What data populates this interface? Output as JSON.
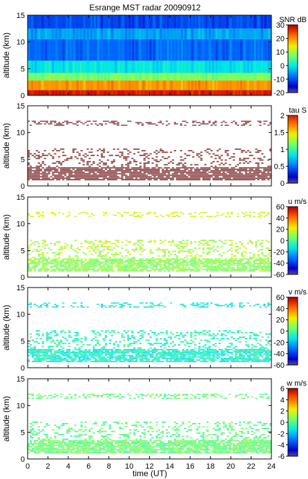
{
  "chart_data": {
    "type": "heatmap",
    "title": "Esrange MST radar 20090912",
    "xlabel": "time (UT)",
    "x_ticks": [
      0,
      2,
      4,
      6,
      8,
      10,
      12,
      14,
      16,
      18,
      20,
      22,
      24
    ],
    "xlim": [
      0,
      24
    ],
    "panels": [
      {
        "name": "snr",
        "ylabel": "altitude (km)",
        "ylim": [
          0,
          15
        ],
        "y_ticks": [
          0,
          5,
          10,
          15
        ],
        "colorbar": {
          "label": "SNR dB",
          "range": [
            -20,
            30
          ],
          "ticks": [
            30,
            20,
            10,
            0,
            -10,
            -20
          ]
        },
        "layers": [
          {
            "z0": 0.0,
            "z1": 1.0,
            "value": 28
          },
          {
            "z0": 1.0,
            "z1": 2.8,
            "value": 20
          },
          {
            "z0": 2.8,
            "z1": 4.2,
            "value": 8
          },
          {
            "z0": 4.2,
            "z1": 6.5,
            "value": 0
          },
          {
            "z0": 6.5,
            "z1": 10.5,
            "value": -8
          },
          {
            "z0": 10.5,
            "z1": 12.5,
            "value": -4
          },
          {
            "z0": 12.5,
            "z1": 15.0,
            "value": -10
          }
        ]
      },
      {
        "name": "tau",
        "ylabel": "altitude (km)",
        "ylim": [
          0,
          15
        ],
        "y_ticks": [
          0,
          5,
          10,
          15
        ],
        "colorbar": {
          "label": "tau S",
          "range": [
            0,
            2
          ],
          "ticks": [
            2,
            1.5,
            1,
            0.5,
            0
          ]
        },
        "layers": [
          {
            "z0": 1.0,
            "z1": 3.5,
            "value": 2,
            "density": 0.85
          },
          {
            "z0": 3.5,
            "z1": 7.0,
            "value": 2,
            "density": 0.25
          },
          {
            "z0": 11.2,
            "z1": 12.2,
            "value": 2,
            "density": 0.3
          }
        ]
      },
      {
        "name": "u",
        "ylabel": "altitude (km)",
        "ylim": [
          0,
          15
        ],
        "y_ticks": [
          0,
          5,
          10,
          15
        ],
        "colorbar": {
          "label": "u m/s",
          "range": [
            -60,
            60
          ],
          "ticks": [
            60,
            40,
            20,
            0,
            -20,
            -40,
            -60
          ]
        },
        "layers": [
          {
            "z0": 1.0,
            "z1": 3.5,
            "value": 10,
            "density": 0.8
          },
          {
            "z0": 3.5,
            "z1": 7.0,
            "value": 15,
            "density": 0.25
          },
          {
            "z0": 11.2,
            "z1": 12.2,
            "value": 20,
            "density": 0.3
          }
        ]
      },
      {
        "name": "v",
        "ylabel": "altitude (km)",
        "ylim": [
          0,
          15
        ],
        "y_ticks": [
          0,
          5,
          10,
          15
        ],
        "colorbar": {
          "label": "v m/s",
          "range": [
            -60,
            60
          ],
          "ticks": [
            60,
            40,
            20,
            0,
            -20,
            -40,
            -60
          ]
        },
        "layers": [
          {
            "z0": 1.0,
            "z1": 3.5,
            "value": -8,
            "density": 0.8
          },
          {
            "z0": 3.5,
            "z1": 7.0,
            "value": -5,
            "density": 0.25
          },
          {
            "z0": 11.2,
            "z1": 12.2,
            "value": -10,
            "density": 0.3
          }
        ]
      },
      {
        "name": "w",
        "ylabel": "altitude (km)",
        "ylim": [
          0,
          15
        ],
        "y_ticks": [
          0,
          5,
          10,
          15
        ],
        "colorbar": {
          "label": "w m/s",
          "range": [
            -6,
            6
          ],
          "ticks": [
            6,
            4,
            2,
            0,
            -2,
            -4,
            -6
          ]
        },
        "layers": [
          {
            "z0": 1.0,
            "z1": 3.5,
            "value": 0.5,
            "density": 0.85
          },
          {
            "z0": 3.5,
            "z1": 7.0,
            "value": 0.3,
            "density": 0.25
          },
          {
            "z0": 11.2,
            "z1": 12.2,
            "value": 0.4,
            "density": 0.3
          }
        ]
      }
    ]
  }
}
